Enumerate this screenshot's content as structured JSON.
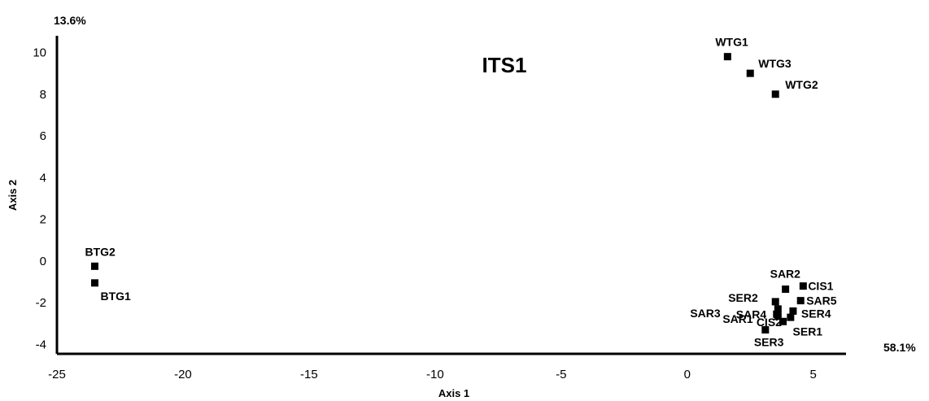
{
  "chart_data": {
    "type": "scatter",
    "title": "ITS1",
    "xlabel": "Axis 1",
    "ylabel": "Axis 2",
    "x_variance_label": "58.1%",
    "y_variance_label": "13.6%",
    "xlim": [
      -25,
      6.3
    ],
    "ylim": [
      -4.45,
      10.8
    ],
    "xticks": [
      "-25",
      "-20",
      "-15",
      "-10",
      "-5",
      "0",
      "5"
    ],
    "yticks": [
      "-4",
      "-2",
      "0",
      "2",
      "4",
      "6",
      "8",
      "10"
    ],
    "grid": false,
    "legend": "none",
    "marker_color": "#000000",
    "points": [
      {
        "label": "WTG1",
        "x": 1.6,
        "y": 9.8
      },
      {
        "label": "WTG3",
        "x": 2.5,
        "y": 9.0
      },
      {
        "label": "WTG2",
        "x": 3.5,
        "y": 8.0
      },
      {
        "label": "BTG2",
        "x": -23.5,
        "y": -0.25
      },
      {
        "label": "BTG1",
        "x": -23.5,
        "y": -1.05
      },
      {
        "label": "SAR2",
        "x": 3.9,
        "y": -1.35
      },
      {
        "label": "CIS1",
        "x": 4.6,
        "y": -1.2
      },
      {
        "label": "SER2",
        "x": 3.5,
        "y": -1.95
      },
      {
        "label": "SAR3",
        "x": 3.6,
        "y": -2.3
      },
      {
        "label": "SAR4",
        "x": 3.55,
        "y": -2.55
      },
      {
        "label": "SAR5",
        "x": 4.5,
        "y": -1.9
      },
      {
        "label": "SER4",
        "x": 4.2,
        "y": -2.4
      },
      {
        "label": "SAR1",
        "x": 3.6,
        "y": -2.65
      },
      {
        "label": "CIS2",
        "x": 4.1,
        "y": -2.7
      },
      {
        "label": "SER1",
        "x": 3.8,
        "y": -2.9
      },
      {
        "label": "SER3",
        "x": 3.1,
        "y": -3.3
      }
    ]
  }
}
